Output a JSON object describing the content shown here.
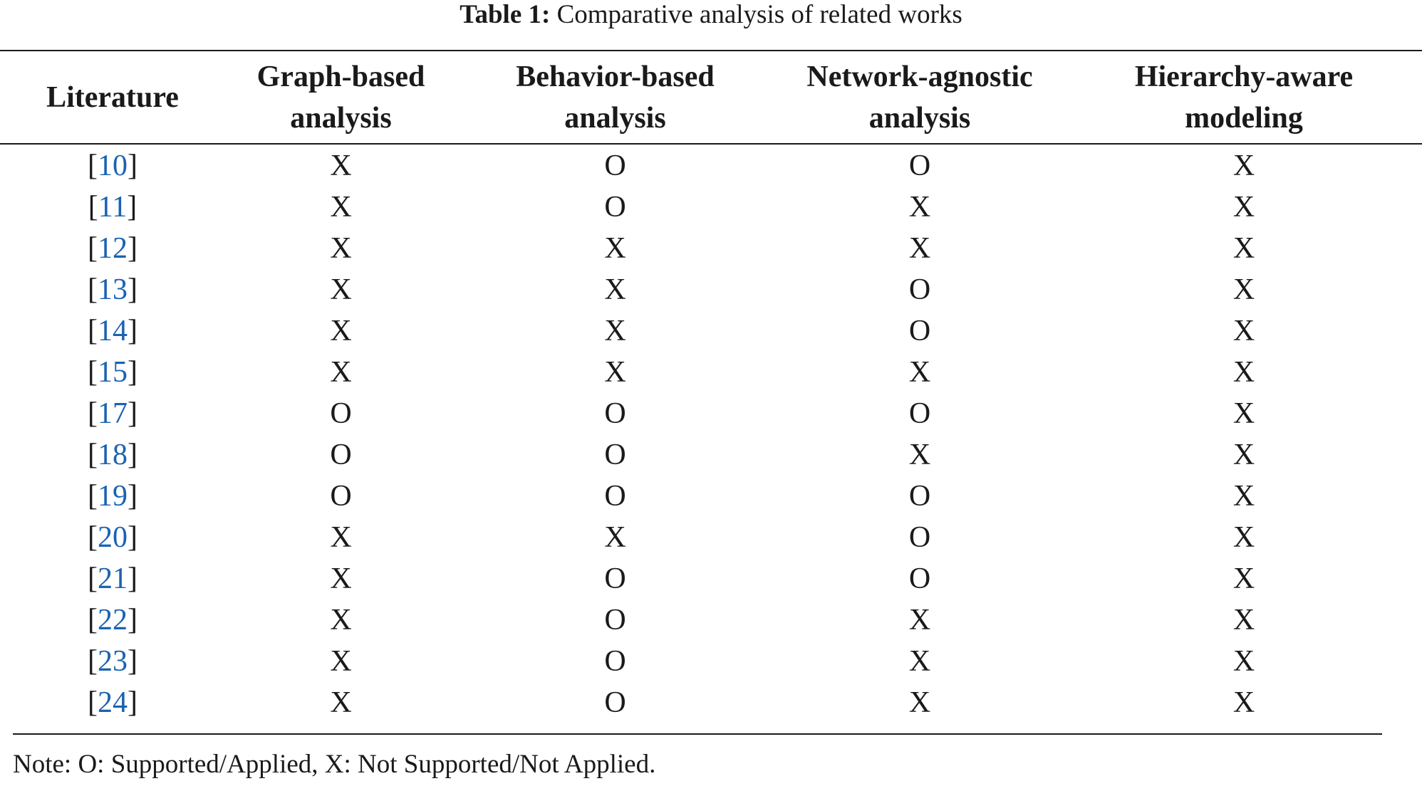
{
  "caption": {
    "label": "Table 1:",
    "text": "Comparative analysis of related works"
  },
  "table": {
    "headers": [
      [
        "Literature"
      ],
      [
        "Graph-based",
        "analysis"
      ],
      [
        "Behavior-based",
        "analysis"
      ],
      [
        "Network-agnostic",
        "analysis"
      ],
      [
        "Hierarchy-aware",
        "modeling"
      ]
    ],
    "rows": [
      {
        "ref": "10",
        "cells": [
          "X",
          "O",
          "O",
          "X"
        ]
      },
      {
        "ref": "11",
        "cells": [
          "X",
          "O",
          "X",
          "X"
        ]
      },
      {
        "ref": "12",
        "cells": [
          "X",
          "X",
          "X",
          "X"
        ]
      },
      {
        "ref": "13",
        "cells": [
          "X",
          "X",
          "O",
          "X"
        ]
      },
      {
        "ref": "14",
        "cells": [
          "X",
          "X",
          "O",
          "X"
        ]
      },
      {
        "ref": "15",
        "cells": [
          "X",
          "X",
          "X",
          "X"
        ]
      },
      {
        "ref": "17",
        "cells": [
          "O",
          "O",
          "O",
          "X"
        ]
      },
      {
        "ref": "18",
        "cells": [
          "O",
          "O",
          "X",
          "X"
        ]
      },
      {
        "ref": "19",
        "cells": [
          "O",
          "O",
          "O",
          "X"
        ]
      },
      {
        "ref": "20",
        "cells": [
          "X",
          "X",
          "O",
          "X"
        ]
      },
      {
        "ref": "21",
        "cells": [
          "X",
          "O",
          "O",
          "X"
        ]
      },
      {
        "ref": "22",
        "cells": [
          "X",
          "O",
          "X",
          "X"
        ]
      },
      {
        "ref": "23",
        "cells": [
          "X",
          "O",
          "X",
          "X"
        ]
      },
      {
        "ref": "24",
        "cells": [
          "X",
          "O",
          "X",
          "X"
        ]
      }
    ]
  },
  "note": "Note: O: Supported/Applied, X: Not Supported/Not Applied.",
  "colors": {
    "text": "#1a1a1a",
    "reference_link": "#1a62b3"
  }
}
